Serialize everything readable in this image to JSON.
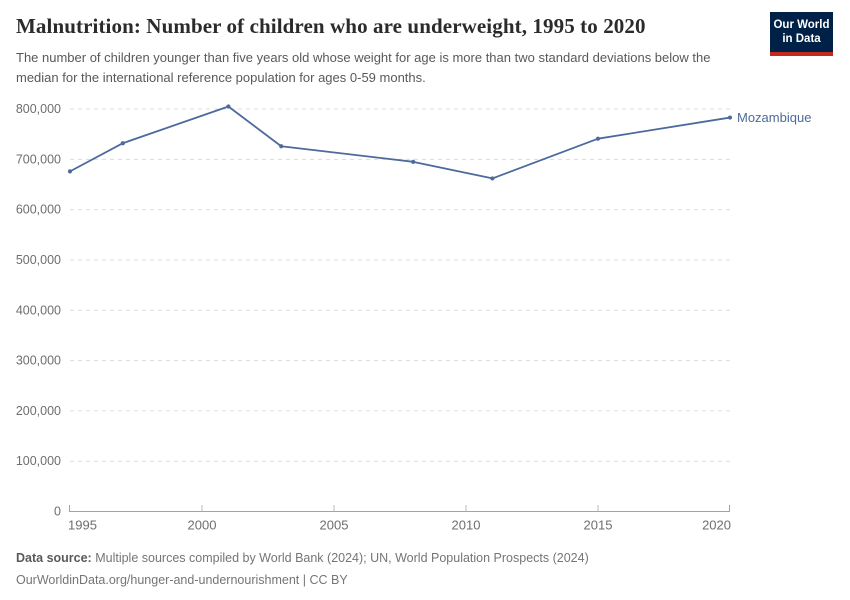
{
  "header": {
    "title": "Malnutrition: Number of children who are underweight, 1995 to 2020",
    "subtitle": "The number of children younger than five years old whose weight for age is more than two standard deviations below the median for the international reference population for ages 0-59 months."
  },
  "logo": {
    "line1": "Our World",
    "line2": "in Data",
    "bg_color": "#002147",
    "accent_color": "#c5281c"
  },
  "chart_data": {
    "type": "line",
    "title": "Malnutrition: Number of children who are underweight, 1995 to 2020",
    "xlabel": "",
    "ylabel": "",
    "xlim": [
      1995,
      2020
    ],
    "ylim": [
      0,
      800000
    ],
    "grid": "horizontal-dashed",
    "legend_position": "end-of-line",
    "xticks": [
      {
        "value": 1995,
        "label": "1995"
      },
      {
        "value": 2000,
        "label": "2000"
      },
      {
        "value": 2005,
        "label": "2005"
      },
      {
        "value": 2010,
        "label": "2010"
      },
      {
        "value": 2015,
        "label": "2015"
      },
      {
        "value": 2020,
        "label": "2020"
      }
    ],
    "yticks": [
      {
        "value": 0,
        "label": "0"
      },
      {
        "value": 100000,
        "label": "100,000"
      },
      {
        "value": 200000,
        "label": "200,000"
      },
      {
        "value": 300000,
        "label": "300,000"
      },
      {
        "value": 400000,
        "label": "400,000"
      },
      {
        "value": 500000,
        "label": "500,000"
      },
      {
        "value": 600000,
        "label": "600,000"
      },
      {
        "value": 700000,
        "label": "700,000"
      },
      {
        "value": 800000,
        "label": "800,000"
      }
    ],
    "series": [
      {
        "name": "Mozambique",
        "color": "#4c6a9c",
        "x": [
          1995,
          1997,
          2001,
          2003,
          2008,
          2011,
          2015,
          2020
        ],
        "values": [
          676000,
          732000,
          805000,
          726000,
          695000,
          662000,
          741000,
          783000
        ]
      }
    ]
  },
  "footer": {
    "datasource_label": "Data source:",
    "datasource_text": "Multiple sources compiled by World Bank (2024); UN, World Population Prospects (2024)",
    "url_line": "OurWorldinData.org/hunger-and-undernourishment | CC BY"
  }
}
